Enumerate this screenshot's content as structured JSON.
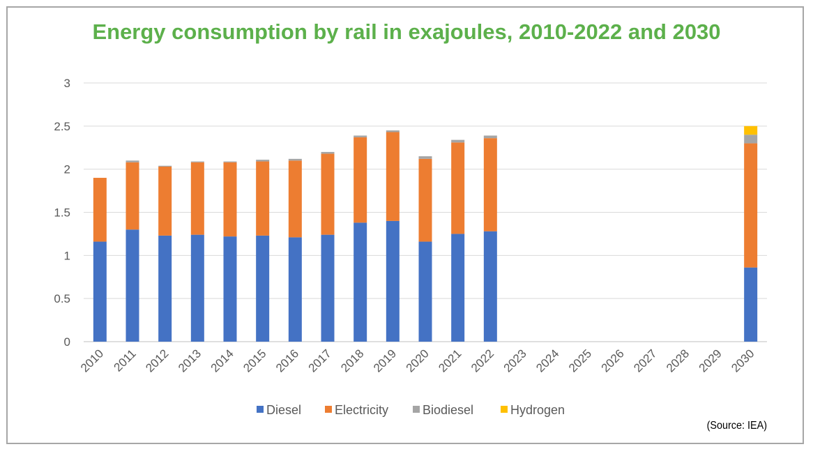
{
  "chart_data": {
    "type": "bar",
    "stacked": true,
    "title": "Energy consumption by rail in exajoules, 2010-2022 and 2030",
    "xlabel": "",
    "ylabel": "",
    "categories": [
      "2010",
      "2011",
      "2012",
      "2013",
      "2014",
      "2015",
      "2016",
      "2017",
      "2018",
      "2019",
      "2020",
      "2021",
      "2022",
      "2023",
      "2024",
      "2025",
      "2026",
      "2027",
      "2028",
      "2029",
      "2030"
    ],
    "series": [
      {
        "name": "Diesel",
        "color": "#4472c4",
        "values": [
          1.16,
          1.3,
          1.23,
          1.24,
          1.22,
          1.23,
          1.21,
          1.24,
          1.38,
          1.4,
          1.16,
          1.25,
          1.28,
          null,
          null,
          null,
          null,
          null,
          null,
          null,
          0.86
        ]
      },
      {
        "name": "Electricity",
        "color": "#ed7d31",
        "values": [
          0.74,
          0.78,
          0.8,
          0.84,
          0.86,
          0.86,
          0.89,
          0.94,
          0.99,
          1.03,
          0.96,
          1.06,
          1.08,
          null,
          null,
          null,
          null,
          null,
          null,
          null,
          1.44
        ]
      },
      {
        "name": "Biodiesel",
        "color": "#a5a5a5",
        "values": [
          0.0,
          0.02,
          0.01,
          0.01,
          0.01,
          0.02,
          0.02,
          0.02,
          0.02,
          0.02,
          0.03,
          0.03,
          0.03,
          null,
          null,
          null,
          null,
          null,
          null,
          null,
          0.1
        ]
      },
      {
        "name": "Hydrogen",
        "color": "#ffc000",
        "values": [
          0,
          0,
          0,
          0,
          0,
          0,
          0,
          0,
          0,
          0,
          0,
          0,
          0,
          null,
          null,
          null,
          null,
          null,
          null,
          null,
          0.1
        ]
      }
    ],
    "yticks": [
      "0",
      "0.5",
      "1",
      "1.5",
      "2",
      "2.5",
      "3"
    ],
    "ylim": [
      0,
      3
    ],
    "grid": true,
    "legend": "bottom",
    "annotation": "(Source: IEA)"
  }
}
